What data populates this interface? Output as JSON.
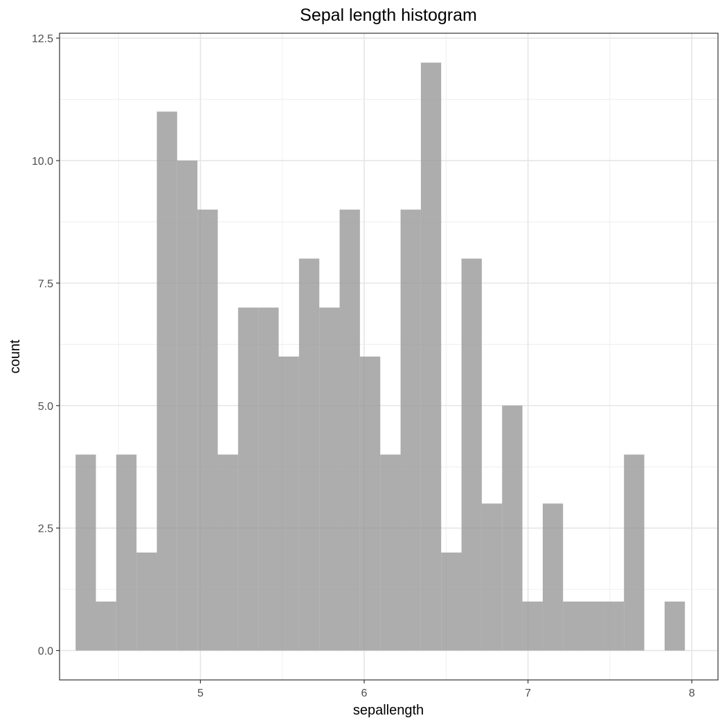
{
  "chart_data": {
    "type": "bar",
    "subtype": "histogram",
    "title": "Sepal length histogram",
    "xlabel": "sepallength",
    "ylabel": "count",
    "bin_width": 0.124,
    "x_first_bin_center": 4.3,
    "values": [
      4,
      1,
      4,
      2,
      11,
      10,
      9,
      4,
      7,
      7,
      6,
      8,
      7,
      9,
      6,
      4,
      9,
      12,
      2,
      8,
      3,
      5,
      1,
      3,
      1,
      1,
      1,
      4,
      0,
      1
    ],
    "xlim": [
      4.14,
      8.16
    ],
    "ylim": [
      -0.6,
      12.6
    ],
    "x_ticks": [
      5,
      6,
      7,
      8
    ],
    "x_tick_labels": [
      "5",
      "6",
      "7",
      "8"
    ],
    "y_ticks": [
      0,
      2.5,
      5,
      7.5,
      10,
      12.5
    ],
    "y_tick_labels": [
      "0.0",
      "2.5",
      "5.0",
      "7.5",
      "10.0",
      "12.5"
    ],
    "grid": true,
    "theme": "bw",
    "bar_color": "#999999",
    "bar_opacity": 0.8
  }
}
